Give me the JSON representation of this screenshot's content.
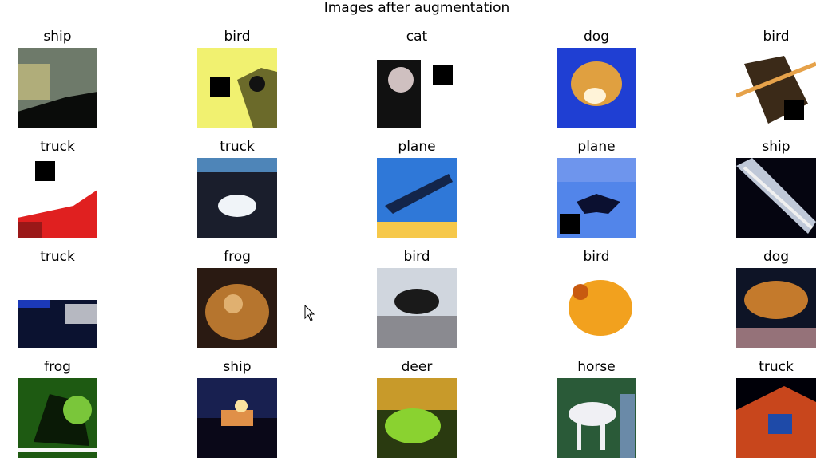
{
  "window": {
    "title": "Images after augmentation"
  },
  "grid": {
    "cells": [
      {
        "label": "ship",
        "colors": {
          "bg": "#6e7a6a",
          "fg": "#0a0c0a",
          "acc": "#f1e08a"
        }
      },
      {
        "label": "bird",
        "colors": {
          "bg": "#f1f170",
          "fg": "#121212",
          "acc": "#6b6a2a"
        }
      },
      {
        "label": "cat",
        "colors": {
          "bg": "#ffffff",
          "fg": "#111111",
          "acc": "#cfc0c0"
        }
      },
      {
        "label": "dog",
        "colors": {
          "bg": "#1f3fd3",
          "fg": "#e0a040",
          "acc": "#fff3d8"
        }
      },
      {
        "label": "bird",
        "colors": {
          "bg": "#ffffff",
          "fg": "#3b2a18",
          "acc": "#e6a24a"
        }
      },
      {
        "label": "truck",
        "colors": {
          "bg": "#ffffff",
          "fg": "#e02020",
          "acc": "#9a1818"
        }
      },
      {
        "label": "truck",
        "colors": {
          "bg": "#1a1e2c",
          "fg": "#f0f4f8",
          "acc": "#4e85b8"
        }
      },
      {
        "label": "plane",
        "colors": {
          "bg": "#2f78d8",
          "fg": "#13254a",
          "acc": "#f6c84a"
        }
      },
      {
        "label": "plane",
        "colors": {
          "bg": "#5285ea",
          "fg": "#0b1030",
          "acc": "#8aa6f0"
        }
      },
      {
        "label": "ship",
        "colors": {
          "bg": "#050510",
          "fg": "#bfc8d8",
          "acc": "#f0f0f0"
        }
      },
      {
        "label": "truck",
        "colors": {
          "bg": "#ffffff",
          "fg": "#0b1230",
          "acc": "#1b39b8"
        }
      },
      {
        "label": "frog",
        "colors": {
          "bg": "#2a1a12",
          "fg": "#b6752e",
          "acc": "#e0b070"
        }
      },
      {
        "label": "bird",
        "colors": {
          "bg": "#d0d6de",
          "fg": "#1a1a1a",
          "acc": "#8a8a90"
        }
      },
      {
        "label": "bird",
        "colors": {
          "bg": "#ffffff",
          "fg": "#f2a11e",
          "acc": "#c85a10"
        }
      },
      {
        "label": "dog",
        "colors": {
          "bg": "#0e1426",
          "fg": "#c47a2c",
          "acc": "#f0b0b0"
        }
      },
      {
        "label": "frog",
        "colors": {
          "bg": "#1e5a12",
          "fg": "#7ac63a",
          "acc": "#f8f8f8"
        }
      },
      {
        "label": "ship",
        "colors": {
          "bg": "#182050",
          "fg": "#e09048",
          "acc": "#fbe3a0"
        }
      },
      {
        "label": "deer",
        "colors": {
          "bg": "#2a3a10",
          "fg": "#8ad230",
          "acc": "#c89a2a"
        }
      },
      {
        "label": "horse",
        "colors": {
          "bg": "#2a5a38",
          "fg": "#f0f0f4",
          "acc": "#6a8aa8"
        }
      },
      {
        "label": "truck",
        "colors": {
          "bg": "#000008",
          "fg": "#c8461c",
          "acc": "#1e4aa8"
        }
      }
    ]
  },
  "cursor": {
    "icon": "mouse-pointer-icon"
  }
}
